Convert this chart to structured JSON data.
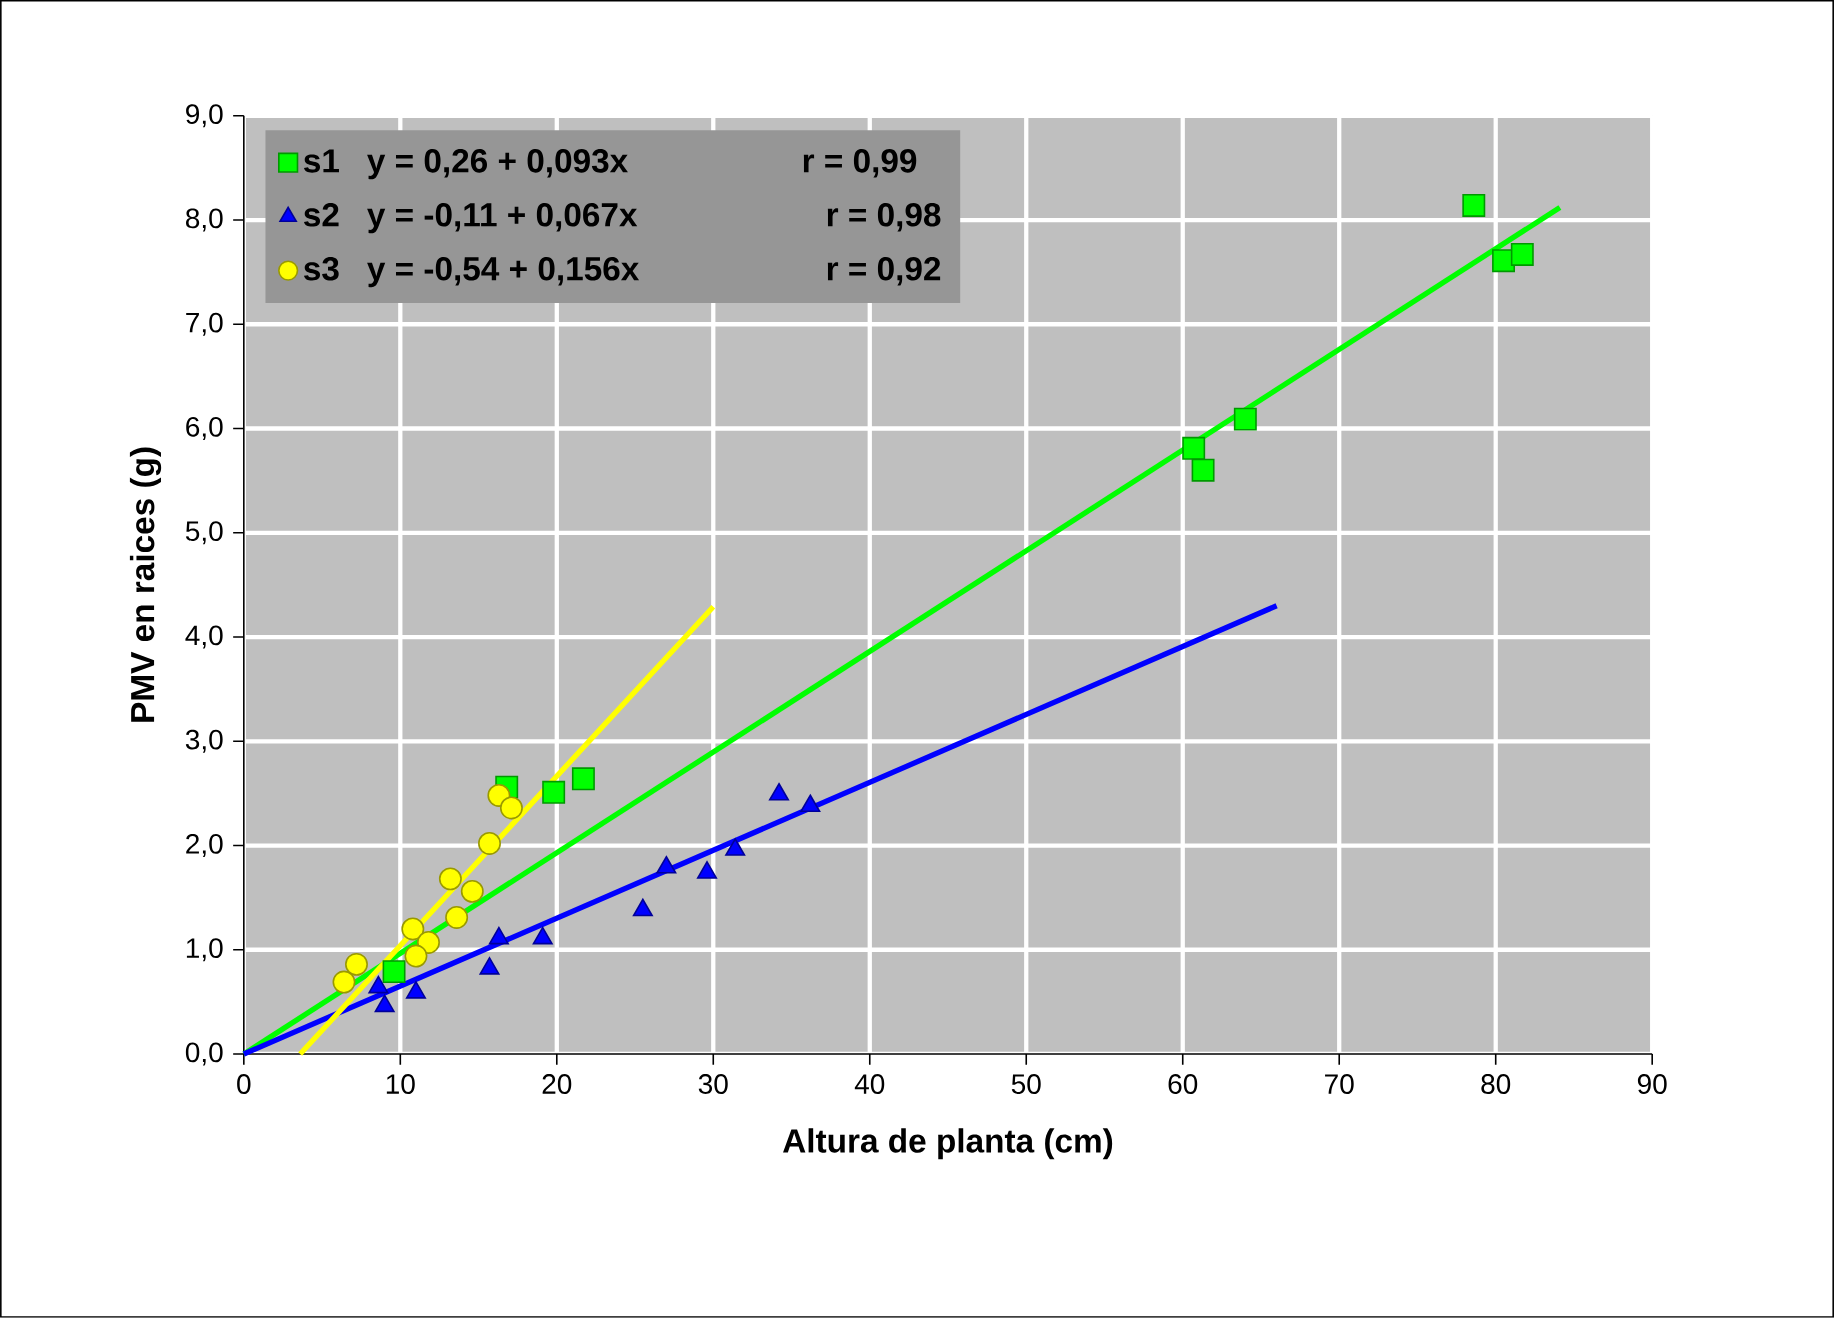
{
  "chart_data": {
    "type": "scatter",
    "xlabel": "Altura de planta (cm)",
    "ylabel": "PMV en raices (g)",
    "xlim": [
      0,
      90
    ],
    "xticks": [
      0,
      10,
      20,
      30,
      40,
      50,
      60,
      70,
      80,
      90
    ],
    "ylim": [
      0,
      9
    ],
    "yticks": [
      {
        "value": 0,
        "label": "0,0"
      },
      {
        "value": 1,
        "label": "1,0"
      },
      {
        "value": 2,
        "label": "2,0"
      },
      {
        "value": 3,
        "label": "3,0"
      },
      {
        "value": 4,
        "label": "4,0"
      },
      {
        "value": 5,
        "label": "5,0"
      },
      {
        "value": 6,
        "label": "6,0"
      },
      {
        "value": 7,
        "label": "7,0"
      },
      {
        "value": 8,
        "label": "8,0"
      },
      {
        "value": 9,
        "label": "9,0"
      }
    ],
    "grid": true,
    "legend": "top left",
    "annotations": [
      "y = 0,26 + 0,093x",
      "r = 0,99",
      "y = -0,11 + 0,067x",
      "r = 0,98",
      "y = -0,54 + 0,156x",
      "r = 0,92"
    ],
    "series": [
      {
        "name": "s1",
        "color": "#00ff00",
        "marker": "square",
        "x": [
          16.8,
          19.8,
          21.7,
          9.6,
          11.5,
          60.7,
          61.3,
          64.0,
          78.6,
          80.5,
          81.7
        ],
        "values": [
          2.56,
          2.51,
          2.64,
          0.79,
          null,
          5.81,
          5.6,
          6.09,
          8.14,
          7.61,
          7.67
        ]
      },
      {
        "name": "s2",
        "color": "#0000ff",
        "marker": "triangle",
        "x": [
          8.6,
          9.0,
          11.0,
          16.3,
          15.7,
          19.1,
          25.5,
          27.0,
          29.6,
          31.4,
          34.2,
          36.2
        ],
        "values": [
          0.64,
          0.46,
          0.59,
          1.11,
          0.82,
          1.11,
          1.38,
          1.79,
          1.74,
          1.96,
          2.49,
          2.38
        ]
      },
      {
        "name": "s3",
        "color": "#ffff00",
        "marker": "circle",
        "x": [
          6.4,
          7.2,
          10.8,
          11.8,
          11.0,
          13.2,
          14.6,
          13.6,
          15.7,
          16.3,
          17.1
        ],
        "values": [
          0.69,
          0.86,
          1.2,
          1.07,
          0.94,
          1.68,
          1.56,
          1.31,
          2.02,
          2.48,
          2.36
        ]
      },
      {
        "type": "line",
        "color": "#00ff00",
        "marker": "none",
        "x": [
          0,
          84.1
        ],
        "values": [
          0,
          8.12
        ]
      },
      {
        "type": "line",
        "color": "#0000ff",
        "marker": "none",
        "x": [
          0,
          66
        ],
        "values": [
          0,
          4.3
        ]
      },
      {
        "type": "line",
        "color": "#ffff00",
        "marker": "none",
        "x": [
          3.6,
          30.0
        ],
        "values": [
          0,
          4.29
        ]
      }
    ]
  }
}
